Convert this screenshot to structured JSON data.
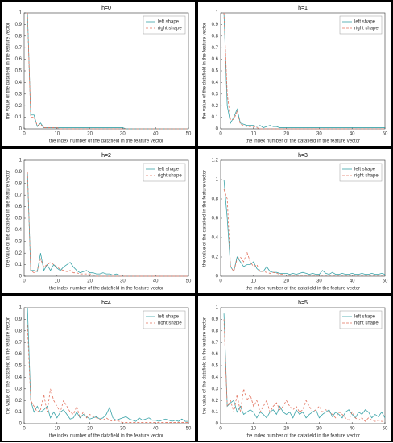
{
  "chart_data": [
    {
      "type": "line",
      "title": "h=0",
      "x_label": "the index number of the datafield in the feature vector",
      "y_label": "the value of the datafield in the feature vector",
      "x": [
        1,
        2,
        3,
        4,
        5,
        6,
        7,
        8,
        9,
        10,
        11,
        12,
        13,
        14,
        15,
        16,
        17,
        18,
        19,
        20,
        21,
        22,
        23,
        24,
        25,
        26,
        27,
        28,
        29,
        30,
        31,
        32,
        33,
        34,
        35,
        36,
        37,
        38,
        39,
        40,
        41,
        42,
        43,
        44,
        45,
        46,
        47,
        48,
        49,
        50
      ],
      "xlim": [
        0,
        50
      ],
      "xticks": [
        0,
        10,
        20,
        30,
        40,
        50
      ],
      "ylim": [
        0,
        1
      ],
      "yticks": [
        0,
        0.1,
        0.2,
        0.3,
        0.4,
        0.5,
        0.6,
        0.7,
        0.8,
        0.9,
        1
      ],
      "legend": "upper right",
      "series": [
        {
          "name": "left shape",
          "color": "#3aa3a8",
          "linestyle": "solid",
          "values": [
            1,
            0.12,
            0.12,
            0.02,
            0.05,
            0.01,
            0.01,
            0.01,
            0.01,
            0.01,
            0.01,
            0.01,
            0.01,
            0.01,
            0.01,
            0.01,
            0.01,
            0.01,
            0.01,
            0.01,
            0.01,
            0.01,
            0.01,
            0.01,
            0.01,
            0.01,
            0.01,
            0.01,
            0.01,
            0.01,
            0,
            0,
            0,
            0,
            0,
            0,
            0,
            0,
            0,
            0,
            0,
            0,
            0,
            0,
            0,
            0,
            0,
            0,
            0,
            0
          ]
        },
        {
          "name": "right shape",
          "color": "#e2735f",
          "linestyle": "dashed",
          "values": [
            1,
            0.1,
            0.1,
            0.03,
            0.04,
            0.01,
            0.01,
            0.01,
            0.01,
            0.01,
            0,
            0,
            0,
            0,
            0,
            0,
            0,
            0,
            0,
            0,
            0,
            0,
            0,
            0,
            0,
            0,
            0,
            0,
            0,
            0,
            0,
            0,
            0,
            0,
            0,
            0,
            0,
            0,
            0,
            0,
            0,
            0,
            0,
            0,
            0,
            0,
            0,
            0,
            0,
            0
          ]
        }
      ]
    },
    {
      "type": "line",
      "title": "h=1",
      "x_label": "the index number of the datafield in the feature vector",
      "y_label": "the value of the datafield in the feature vector",
      "x": [
        1,
        2,
        3,
        4,
        5,
        6,
        7,
        8,
        9,
        10,
        11,
        12,
        13,
        14,
        15,
        16,
        17,
        18,
        19,
        20,
        21,
        22,
        23,
        24,
        25,
        26,
        27,
        28,
        29,
        30,
        31,
        32,
        33,
        34,
        35,
        36,
        37,
        38,
        39,
        40,
        41,
        42,
        43,
        44,
        45,
        46,
        47,
        48,
        49,
        50
      ],
      "xlim": [
        0,
        50
      ],
      "xticks": [
        0,
        10,
        20,
        30,
        40,
        50
      ],
      "ylim": [
        0,
        1
      ],
      "yticks": [
        0,
        0.1,
        0.2,
        0.3,
        0.4,
        0.5,
        0.6,
        0.7,
        0.8,
        0.9,
        1
      ],
      "legend": "upper right",
      "series": [
        {
          "name": "left shape",
          "color": "#3aa3a8",
          "linestyle": "solid",
          "values": [
            1,
            0.2,
            0.05,
            0.1,
            0.17,
            0.05,
            0.04,
            0.03,
            0.03,
            0.03,
            0.02,
            0.03,
            0.01,
            0.02,
            0.03,
            0.02,
            0.02,
            0.01,
            0.01,
            0.01,
            0.01,
            0.01,
            0.01,
            0.01,
            0.01,
            0.01,
            0.01,
            0.01,
            0.01,
            0.01,
            0.01,
            0.01,
            0.01,
            0.01,
            0.01,
            0.01,
            0.01,
            0.01,
            0.01,
            0.01,
            0.01,
            0.01,
            0.01,
            0.01,
            0.01,
            0.01,
            0.01,
            0.01,
            0.01,
            0.01
          ]
        },
        {
          "name": "right shape",
          "color": "#e2735f",
          "linestyle": "dashed",
          "values": [
            1,
            0.3,
            0.08,
            0.08,
            0.15,
            0.04,
            0.03,
            0.02,
            0.02,
            0.02,
            0.01,
            0,
            0,
            0,
            0,
            0,
            0,
            0,
            0,
            0,
            0,
            0,
            0,
            0,
            0,
            0,
            0,
            0,
            0,
            0,
            0,
            0,
            0,
            0,
            0,
            0,
            0,
            0,
            0,
            0,
            0,
            0,
            0,
            0,
            0,
            0,
            0,
            0,
            0,
            0
          ]
        }
      ]
    },
    {
      "type": "line",
      "title": "h=2",
      "x_label": "the index number of the datafield in the feature vector",
      "y_label": "the value of the datafield in the feature vector",
      "x": [
        1,
        2,
        3,
        4,
        5,
        6,
        7,
        8,
        9,
        10,
        11,
        12,
        13,
        14,
        15,
        16,
        17,
        18,
        19,
        20,
        21,
        22,
        23,
        24,
        25,
        26,
        27,
        28,
        29,
        30,
        31,
        32,
        33,
        34,
        35,
        36,
        37,
        38,
        39,
        40,
        41,
        42,
        43,
        44,
        45,
        46,
        47,
        48,
        49,
        50
      ],
      "xlim": [
        0,
        50
      ],
      "xticks": [
        0,
        10,
        20,
        30,
        40,
        50
      ],
      "ylim": [
        0,
        1
      ],
      "yticks": [
        0,
        0.1,
        0.2,
        0.3,
        0.4,
        0.5,
        0.6,
        0.7,
        0.8,
        0.9,
        1
      ],
      "legend": "upper right",
      "series": [
        {
          "name": "left shape",
          "color": "#3aa3a8",
          "linestyle": "solid",
          "values": [
            0.9,
            0.05,
            0.05,
            0.04,
            0.2,
            0.05,
            0.1,
            0.05,
            0.1,
            0.07,
            0.05,
            0.08,
            0.1,
            0.12,
            0.08,
            0.05,
            0.03,
            0.04,
            0.05,
            0.03,
            0.03,
            0.02,
            0.02,
            0.03,
            0.02,
            0.02,
            0.01,
            0.02,
            0.01,
            0.01,
            0.01,
            0.01,
            0.01,
            0.01,
            0.01,
            0.01,
            0.01,
            0.01,
            0.01,
            0.01,
            0.01,
            0.01,
            0.01,
            0.01,
            0.01,
            0.01,
            0.01,
            0.01,
            0.01,
            0.01
          ]
        },
        {
          "name": "right shape",
          "color": "#e2735f",
          "linestyle": "dashed",
          "values": [
            0.9,
            0.05,
            0.03,
            0.05,
            0.15,
            0.08,
            0.1,
            0.12,
            0.1,
            0.08,
            0.06,
            0.05,
            0.04,
            0.05,
            0.03,
            0.03,
            0.02,
            0.02,
            0.02,
            0.02,
            0.01,
            0,
            0,
            0,
            0,
            0,
            0,
            0,
            0,
            0,
            0,
            0,
            0,
            0,
            0,
            0,
            0,
            0,
            0,
            0,
            0,
            0,
            0,
            0,
            0,
            0,
            0,
            0,
            0,
            0
          ]
        }
      ]
    },
    {
      "type": "line",
      "title": "h=3",
      "x_label": "the index number of the datafield in the feature vector",
      "y_label": "the value of the datafield in the feature vector",
      "x": [
        1,
        2,
        3,
        4,
        5,
        6,
        7,
        8,
        9,
        10,
        11,
        12,
        13,
        14,
        15,
        16,
        17,
        18,
        19,
        20,
        21,
        22,
        23,
        24,
        25,
        26,
        27,
        28,
        29,
        30,
        31,
        32,
        33,
        34,
        35,
        36,
        37,
        38,
        39,
        40,
        41,
        42,
        43,
        44,
        45,
        46,
        47,
        48,
        49,
        50
      ],
      "xlim": [
        0,
        50
      ],
      "xticks": [
        0,
        10,
        20,
        30,
        40,
        50
      ],
      "ylim": [
        0,
        1.2
      ],
      "yticks": [
        0,
        0.2,
        0.4,
        0.6,
        0.8,
        1,
        1.2
      ],
      "legend": "upper right",
      "series": [
        {
          "name": "left shape",
          "color": "#3aa3a8",
          "linestyle": "solid",
          "values": [
            1,
            0.6,
            0.1,
            0.05,
            0.2,
            0.15,
            0.1,
            0.12,
            0.12,
            0.15,
            0.08,
            0.05,
            0.05,
            0.1,
            0.05,
            0.04,
            0.04,
            0.03,
            0.03,
            0.03,
            0.02,
            0.03,
            0.02,
            0.03,
            0.04,
            0.03,
            0.02,
            0.03,
            0.02,
            0.02,
            0.06,
            0.03,
            0.02,
            0.04,
            0.02,
            0.02,
            0.03,
            0.02,
            0.02,
            0.03,
            0.02,
            0.02,
            0.03,
            0.02,
            0.02,
            0.03,
            0.02,
            0.02,
            0.03,
            0.02
          ]
        },
        {
          "name": "right shape",
          "color": "#e2735f",
          "linestyle": "dashed",
          "values": [
            0.9,
            0.8,
            0.1,
            0.05,
            0.18,
            0.2,
            0.15,
            0.25,
            0.15,
            0.1,
            0.12,
            0.05,
            0.05,
            0.04,
            0.03,
            0.04,
            0.03,
            0.02,
            0.02,
            0.01,
            0.01,
            0.01,
            0.01,
            0.01,
            0.01,
            0.01,
            0.01,
            0.01,
            0.01,
            0.01,
            0.01,
            0.01,
            0.01,
            0.01,
            0.01,
            0.01,
            0.01,
            0.01,
            0.01,
            0.01,
            0.01,
            0.01,
            0.01,
            0.01,
            0.01,
            0.01,
            0.01,
            0.01,
            0.01,
            0.01
          ]
        }
      ]
    },
    {
      "type": "line",
      "title": "h=4",
      "x_label": "the index number of the datafield in the feature vector",
      "y_label": "the value of the datafield in the feature vector",
      "x": [
        1,
        2,
        3,
        4,
        5,
        6,
        7,
        8,
        9,
        10,
        11,
        12,
        13,
        14,
        15,
        16,
        17,
        18,
        19,
        20,
        21,
        22,
        23,
        24,
        25,
        26,
        27,
        28,
        29,
        30,
        31,
        32,
        33,
        34,
        35,
        36,
        37,
        38,
        39,
        40,
        41,
        42,
        43,
        44,
        45,
        46,
        47,
        48,
        49,
        50
      ],
      "xlim": [
        0,
        50
      ],
      "xticks": [
        0,
        10,
        20,
        30,
        40,
        50
      ],
      "ylim": [
        0,
        1
      ],
      "yticks": [
        0,
        0.1,
        0.2,
        0.3,
        0.4,
        0.5,
        0.6,
        0.7,
        0.8,
        0.9,
        1
      ],
      "legend": "upper right",
      "series": [
        {
          "name": "left shape",
          "color": "#3aa3a8",
          "linestyle": "solid",
          "values": [
            1,
            0.2,
            0.1,
            0.15,
            0.1,
            0.12,
            0.15,
            0.05,
            0.1,
            0.05,
            0.1,
            0.12,
            0.08,
            0.04,
            0.05,
            0.1,
            0.05,
            0.08,
            0.06,
            0.04,
            0.05,
            0.06,
            0.04,
            0.05,
            0.08,
            0.14,
            0.05,
            0.03,
            0.04,
            0.05,
            0.06,
            0.04,
            0.03,
            0.02,
            0.05,
            0.03,
            0.04,
            0.05,
            0.03,
            0.03,
            0.02,
            0.03,
            0.04,
            0.03,
            0.02,
            0.03,
            0.02,
            0.04,
            0.02,
            0.02
          ]
        },
        {
          "name": "right shape",
          "color": "#e2735f",
          "linestyle": "dashed",
          "values": [
            0.85,
            0.2,
            0.15,
            0.1,
            0.12,
            0.25,
            0.1,
            0.3,
            0.2,
            0.15,
            0.1,
            0.2,
            0.15,
            0.1,
            0.08,
            0.15,
            0.05,
            0.1,
            0.05,
            0.08,
            0.06,
            0.05,
            0.04,
            0.03,
            0.05,
            0.03,
            0.02,
            0.03,
            0.02,
            0.01,
            0.01,
            0.01,
            0.01,
            0.01,
            0.01,
            0.01,
            0.01,
            0.01,
            0.01,
            0.01,
            0.01,
            0.01,
            0.01,
            0.01,
            0.01,
            0.01,
            0.01,
            0.01,
            0.01,
            0.01
          ]
        }
      ]
    },
    {
      "type": "line",
      "title": "h=5",
      "x_label": "the index number of the datafield in the feature vector",
      "y_label": "the value of the datafield in the feature vector",
      "x": [
        1,
        2,
        3,
        4,
        5,
        6,
        7,
        8,
        9,
        10,
        11,
        12,
        13,
        14,
        15,
        16,
        17,
        18,
        19,
        20,
        21,
        22,
        23,
        24,
        25,
        26,
        27,
        28,
        29,
        30,
        31,
        32,
        33,
        34,
        35,
        36,
        37,
        38,
        39,
        40,
        41,
        42,
        43,
        44,
        45,
        46,
        47,
        48,
        49,
        50
      ],
      "xlim": [
        0,
        50
      ],
      "xticks": [
        0,
        10,
        20,
        30,
        40,
        50
      ],
      "ylim": [
        0,
        1
      ],
      "yticks": [
        0,
        0.1,
        0.2,
        0.3,
        0.4,
        0.5,
        0.6,
        0.7,
        0.8,
        0.9,
        1
      ],
      "legend": "upper right",
      "series": [
        {
          "name": "left shape",
          "color": "#3aa3a8",
          "linestyle": "solid",
          "values": [
            0.95,
            0.15,
            0.18,
            0.2,
            0.1,
            0.15,
            0.08,
            0.1,
            0.12,
            0.1,
            0.05,
            0.1,
            0.08,
            0.05,
            0.1,
            0.12,
            0.08,
            0.15,
            0.1,
            0.08,
            0.1,
            0.05,
            0.12,
            0.08,
            0.1,
            0.05,
            0.08,
            0.1,
            0.12,
            0.05,
            0.08,
            0.1,
            0.12,
            0.06,
            0.1,
            0.08,
            0.05,
            0.1,
            0.12,
            0.08,
            0.05,
            0.1,
            0.08,
            0.12,
            0.1,
            0.05,
            0.08,
            0.06,
            0.1,
            0.05
          ]
        },
        {
          "name": "right shape",
          "color": "#e2735f",
          "linestyle": "dashed",
          "values": [
            0.9,
            0.15,
            0.2,
            0.1,
            0.25,
            0.1,
            0.3,
            0.2,
            0.25,
            0.15,
            0.2,
            0.1,
            0.15,
            0.2,
            0.1,
            0.15,
            0.18,
            0.12,
            0.15,
            0.2,
            0.15,
            0.12,
            0.15,
            0.1,
            0.12,
            0.2,
            0.15,
            0.1,
            0.12,
            0.15,
            0.1,
            0.12,
            0.1,
            0.08,
            0.05,
            0.1,
            0.08,
            0.05,
            0.03,
            0.1,
            0.05,
            0.03,
            0.05,
            0.02,
            0.05,
            0.03,
            0.02,
            0.03,
            0.02,
            0.02
          ]
        }
      ]
    }
  ]
}
